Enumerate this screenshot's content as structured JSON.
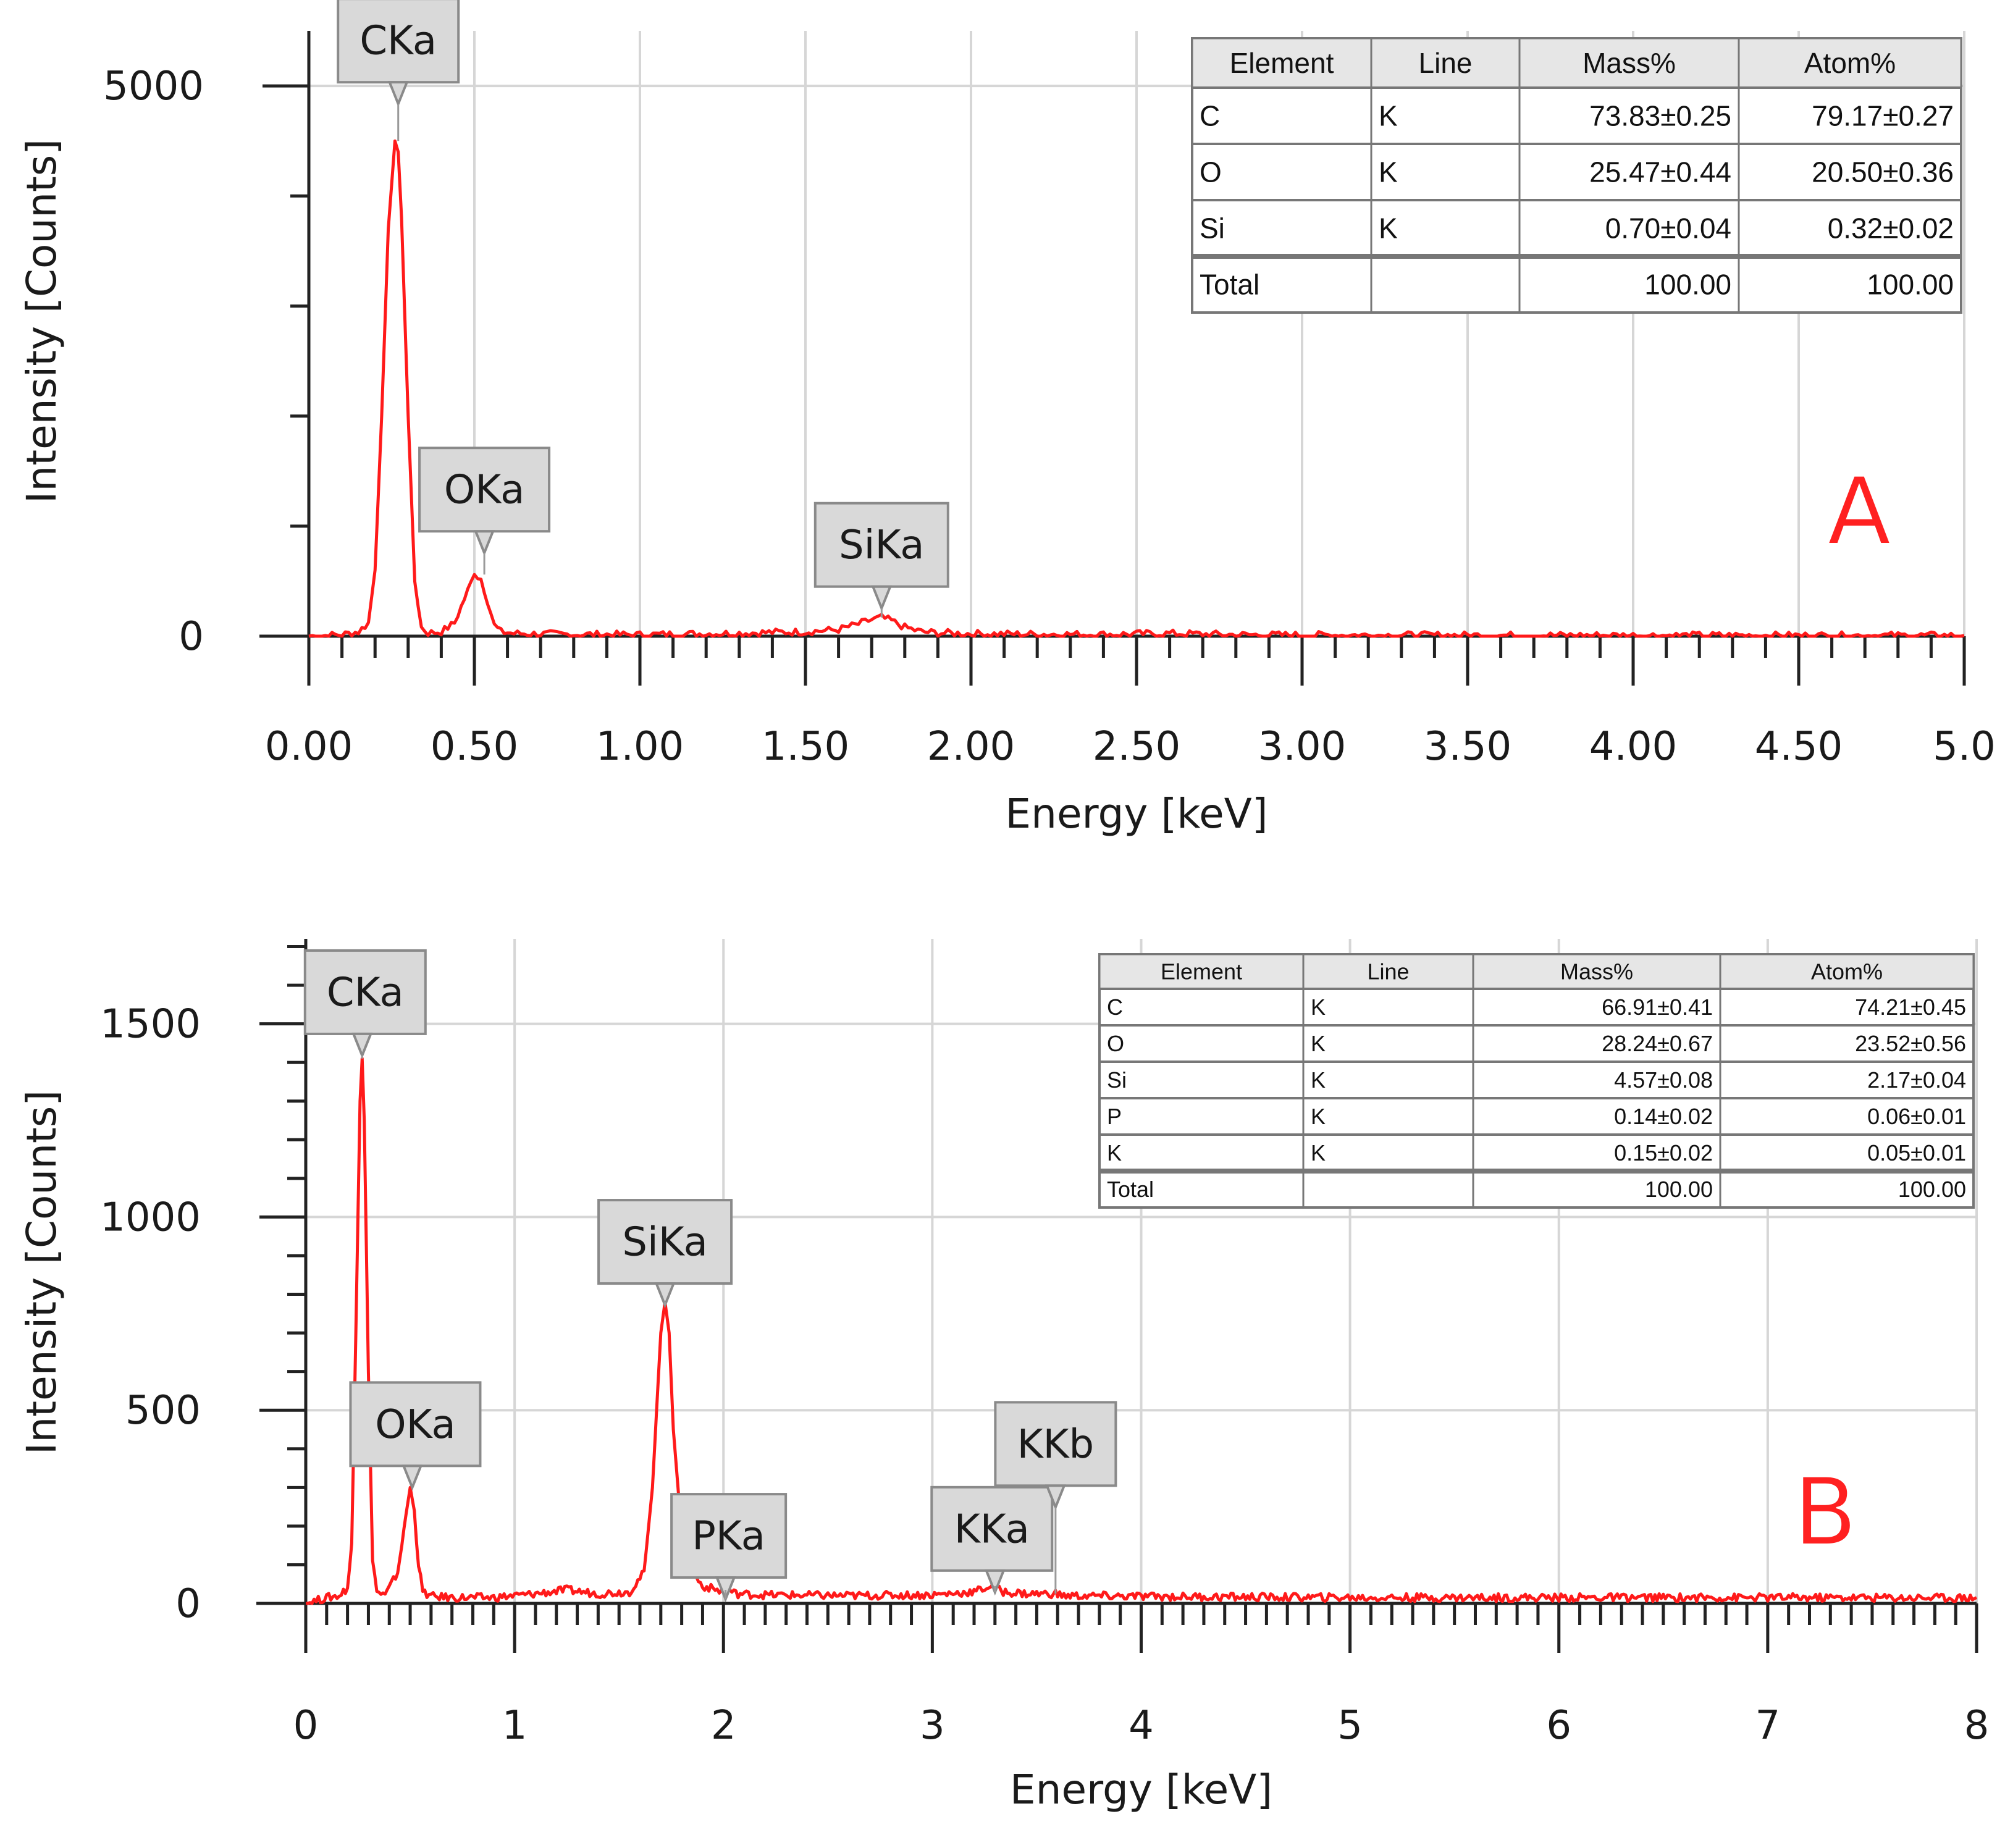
{
  "chart_data": [
    {
      "type": "line",
      "panel_label": "A",
      "xlabel": "Energy [keV]",
      "ylabel": "Intensity [Counts]",
      "xlim": [
        0,
        5
      ],
      "ylim": [
        0,
        5500
      ],
      "x_ticks": [
        0,
        0.5,
        1,
        1.5,
        2,
        2.5,
        3,
        3.5,
        4,
        4.5,
        5
      ],
      "x_tick_labels": [
        "0.00",
        "0.50",
        "1.00",
        "1.50",
        "2.00",
        "2.50",
        "3.00",
        "3.50",
        "4.00",
        "4.50",
        "5.0"
      ],
      "y_ticks": [
        0,
        5000
      ],
      "y_tick_labels": [
        "0",
        "5000"
      ],
      "series": [
        {
          "name": "spectrum",
          "color": "#ff1a1a",
          "x": [
            0.0,
            0.05,
            0.1,
            0.15,
            0.18,
            0.2,
            0.22,
            0.24,
            0.26,
            0.27,
            0.28,
            0.3,
            0.32,
            0.34,
            0.36,
            0.4,
            0.44,
            0.47,
            0.5,
            0.52,
            0.54,
            0.56,
            0.58,
            0.62,
            0.7,
            0.8,
            0.9,
            1.0,
            1.1,
            1.2,
            1.3,
            1.4,
            1.5,
            1.6,
            1.66,
            1.7,
            1.73,
            1.76,
            1.8,
            1.85,
            1.9,
            2.0,
            2.2,
            2.4,
            2.6,
            2.8,
            3.0,
            3.5,
            4.0,
            4.5,
            5.0
          ],
          "y": [
            0,
            5,
            15,
            40,
            120,
            600,
            2000,
            3700,
            4500,
            4400,
            3800,
            2000,
            500,
            80,
            30,
            40,
            120,
            340,
            560,
            520,
            320,
            100,
            40,
            25,
            20,
            15,
            15,
            12,
            18,
            22,
            28,
            35,
            40,
            60,
            110,
            150,
            170,
            140,
            80,
            40,
            30,
            22,
            18,
            15,
            25,
            12,
            10,
            8,
            8,
            6,
            6
          ]
        }
      ],
      "annotations": [
        {
          "text": "CKa",
          "x": 0.27,
          "y": 4500
        },
        {
          "text": "OKa",
          "x": 0.53,
          "y": 560
        },
        {
          "text": "SiKa",
          "x": 1.73,
          "y": 170
        }
      ],
      "table": {
        "headers": [
          "Element",
          "Line",
          "Mass%",
          "Atom%"
        ],
        "rows": [
          [
            "C",
            "K",
            "73.83±0.25",
            "79.17±0.27"
          ],
          [
            "O",
            "K",
            "25.47±0.44",
            "20.50±0.36"
          ],
          [
            "Si",
            "K",
            "0.70±0.04",
            "0.32±0.02"
          ],
          [
            "Total",
            "",
            "100.00",
            "100.00"
          ]
        ]
      }
    },
    {
      "type": "line",
      "panel_label": "B",
      "xlabel": "Energy [keV]",
      "ylabel": "Intensity [Counts]",
      "xlim": [
        0,
        8
      ],
      "ylim": [
        0,
        1720
      ],
      "x_ticks": [
        0,
        1,
        2,
        3,
        4,
        5,
        6,
        7,
        8
      ],
      "x_tick_labels": [
        "0",
        "1",
        "2",
        "3",
        "4",
        "5",
        "6",
        "7",
        "8"
      ],
      "y_ticks": [
        0,
        500,
        1000,
        1500
      ],
      "y_tick_labels": [
        "0",
        "500",
        "1000",
        "1500"
      ],
      "series": [
        {
          "name": "spectrum",
          "color": "#ff1a1a",
          "x": [
            0.0,
            0.1,
            0.16,
            0.2,
            0.22,
            0.24,
            0.26,
            0.27,
            0.28,
            0.3,
            0.32,
            0.34,
            0.38,
            0.44,
            0.48,
            0.5,
            0.52,
            0.54,
            0.56,
            0.6,
            0.7,
            0.9,
            1.1,
            1.25,
            1.4,
            1.55,
            1.62,
            1.66,
            1.7,
            1.72,
            1.74,
            1.76,
            1.8,
            1.85,
            1.9,
            2.0,
            2.02,
            2.06,
            2.2,
            2.6,
            3.0,
            3.2,
            3.28,
            3.34,
            3.45,
            3.59,
            3.62,
            4.0,
            5.0,
            6.0,
            7.0,
            8.0
          ],
          "y": [
            0,
            15,
            20,
            40,
            150,
            700,
            1300,
            1410,
            1250,
            600,
            120,
            30,
            20,
            80,
            230,
            300,
            240,
            100,
            30,
            18,
            15,
            15,
            25,
            35,
            25,
            30,
            80,
            300,
            700,
            780,
            700,
            450,
            180,
            80,
            45,
            30,
            35,
            25,
            22,
            20,
            22,
            30,
            45,
            30,
            25,
            25,
            20,
            18,
            15,
            15,
            15,
            15
          ]
        }
      ],
      "annotations": [
        {
          "text": "CKa",
          "x": 0.27,
          "y": 1410
        },
        {
          "text": "OKa",
          "x": 0.51,
          "y": 300
        },
        {
          "text": "SiKa",
          "x": 1.72,
          "y": 780
        },
        {
          "text": "PKa",
          "x": 2.01,
          "y": 35
        },
        {
          "text": "KKa",
          "x": 3.3,
          "y": 45
        },
        {
          "text": "KKb",
          "x": 3.59,
          "y": 25
        }
      ],
      "table": {
        "headers": [
          "Element",
          "Line",
          "Mass%",
          "Atom%"
        ],
        "rows": [
          [
            "C",
            "K",
            "66.91±0.41",
            "74.21±0.45"
          ],
          [
            "O",
            "K",
            "28.24±0.67",
            "23.52±0.56"
          ],
          [
            "Si",
            "K",
            "4.57±0.08",
            "2.17±0.04"
          ],
          [
            "P",
            "K",
            "0.14±0.02",
            "0.06±0.01"
          ],
          [
            "K",
            "K",
            "0.15±0.02",
            "0.05±0.01"
          ],
          [
            "Total",
            "",
            "100.00",
            "100.00"
          ]
        ]
      }
    }
  ]
}
